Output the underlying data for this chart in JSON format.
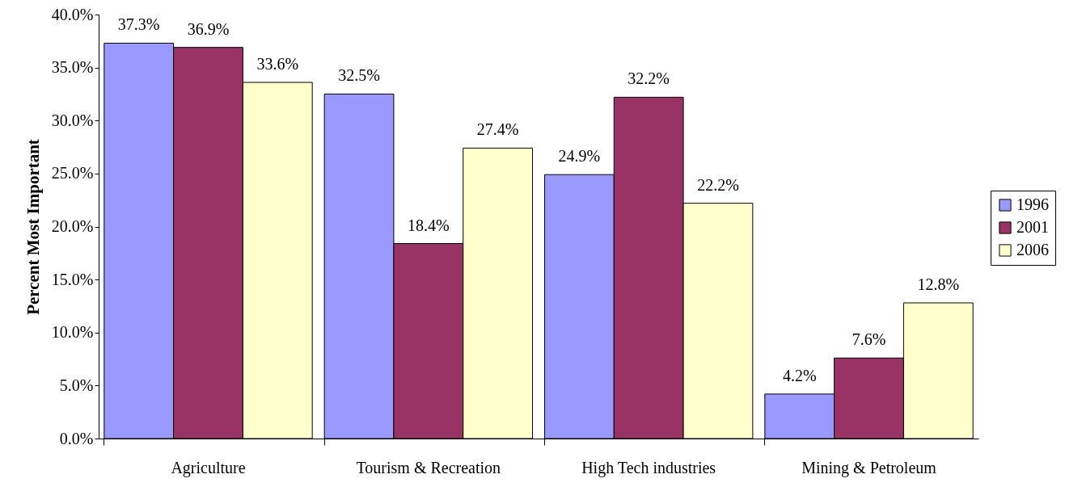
{
  "chart_data": {
    "type": "bar",
    "ylabel": "Percent Most Important",
    "categories": [
      "Agriculture",
      "Tourism & Recreation",
      "High Tech industries",
      "Mining & Petroleum"
    ],
    "series": [
      {
        "name": "1996",
        "color": "#9999ff",
        "values": [
          37.3,
          32.5,
          24.9,
          4.2
        ],
        "value_labels": [
          "37.3%",
          "32.5%",
          "24.9%",
          "4.2%"
        ]
      },
      {
        "name": "2001",
        "color": "#993366",
        "values": [
          36.9,
          18.4,
          32.2,
          7.6
        ],
        "value_labels": [
          "36.9%",
          "18.4%",
          "32.2%",
          "7.6%"
        ]
      },
      {
        "name": "2006",
        "color": "#ffffcc",
        "values": [
          33.6,
          27.4,
          22.2,
          12.8
        ],
        "value_labels": [
          "33.6%",
          "27.4%",
          "22.2%",
          "12.8%"
        ]
      }
    ],
    "ylim": [
      0,
      40
    ],
    "yticks": [
      {
        "value": 0,
        "label": "0.0%"
      },
      {
        "value": 5,
        "label": "5.0%"
      },
      {
        "value": 10,
        "label": "10.0%"
      },
      {
        "value": 15,
        "label": "15.0%"
      },
      {
        "value": 20,
        "label": "20.0%"
      },
      {
        "value": 25,
        "label": "25.0%"
      },
      {
        "value": 30,
        "label": "30.0%"
      },
      {
        "value": 35,
        "label": "35.0%"
      },
      {
        "value": 40,
        "label": "40.0%"
      }
    ],
    "grid": false,
    "legend": "right"
  }
}
